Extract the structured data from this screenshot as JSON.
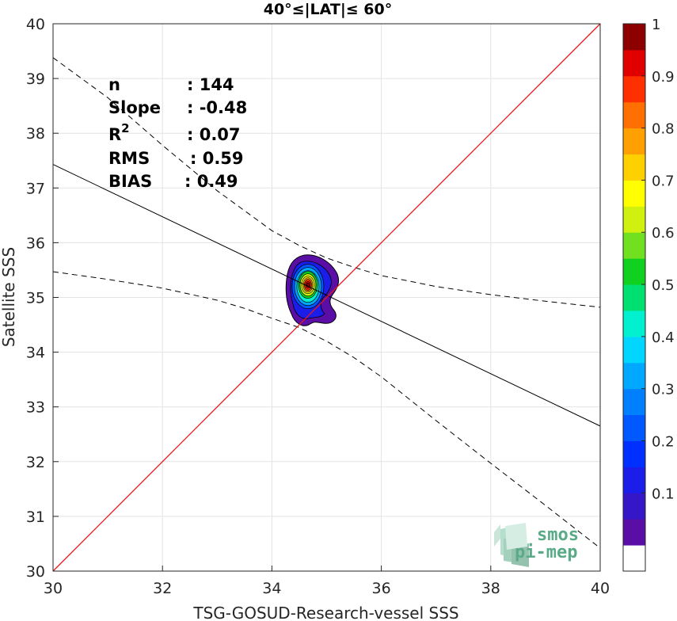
{
  "chart_data": {
    "type": "scatter",
    "title_prefix": "40°≤|LAT|≤ 60°",
    "xlabel": "TSG-GOSUD-Research-vessel SSS",
    "ylabel": "Satellite SSS",
    "xlim": [
      30,
      40
    ],
    "ylim": [
      30,
      40
    ],
    "x_ticks": [
      "30",
      "32",
      "34",
      "36",
      "38",
      "40"
    ],
    "y_ticks": [
      "30",
      "31",
      "32",
      "33",
      "34",
      "35",
      "36",
      "37",
      "38",
      "39",
      "40"
    ],
    "grid": true,
    "stats": [
      {
        "label": "n",
        "value": ": 144"
      },
      {
        "label": "Slope",
        "value": ": -0.48"
      },
      {
        "label": "R",
        "sup": "2",
        "value": ": 0.07"
      },
      {
        "label": "RMS",
        "value": ": 0.59"
      },
      {
        "label": "BIAS",
        "value": ": 0.49"
      }
    ],
    "identity_line": {
      "x": [
        30,
        40
      ],
      "y": [
        30,
        40
      ],
      "color": "#e41a1c"
    },
    "regression_line": {
      "x": [
        30,
        40
      ],
      "y": [
        37.43,
        32.65
      ],
      "color": "#000000"
    },
    "upper_bound": {
      "x": [
        30,
        31,
        32,
        33,
        34,
        34.5,
        35,
        35.5,
        36,
        37,
        38,
        39,
        40
      ],
      "y": [
        39.38,
        38.65,
        37.78,
        36.95,
        36.22,
        35.95,
        35.72,
        35.55,
        35.4,
        35.2,
        35.05,
        34.93,
        34.82
      ]
    },
    "lower_bound": {
      "x": [
        30,
        31,
        32,
        33,
        33.5,
        34,
        34.5,
        35,
        35.5,
        36,
        37,
        38,
        39,
        40
      ],
      "y": [
        35.47,
        35.33,
        35.17,
        34.95,
        34.8,
        34.62,
        34.45,
        34.2,
        33.9,
        33.55,
        32.75,
        31.97,
        31.2,
        30.42
      ]
    },
    "density_peak": {
      "x": 34.63,
      "y": 35.2
    },
    "colorbar": {
      "ticks": [
        "0.1",
        "0.2",
        "0.3",
        "0.4",
        "0.5",
        "0.6",
        "0.7",
        "0.8",
        "0.9",
        "1"
      ],
      "levels": [
        0,
        0.05,
        0.1,
        0.15,
        0.2,
        0.25,
        0.3,
        0.35,
        0.4,
        0.45,
        0.5,
        0.55,
        0.6,
        0.65,
        0.7,
        0.75,
        0.8,
        0.85,
        0.9,
        0.95,
        1
      ],
      "colors": [
        "#ffffff",
        "#5a0ea6",
        "#3617c8",
        "#1a1ee8",
        "#0030ff",
        "#0058ff",
        "#0080ff",
        "#00a8ff",
        "#00d6ff",
        "#00f0d0",
        "#00e070",
        "#10d020",
        "#70e020",
        "#d0f010",
        "#ffff00",
        "#ffd000",
        "#ffa000",
        "#ff7000",
        "#ff3000",
        "#e00000",
        "#8c0000"
      ]
    }
  },
  "logo": {
    "line1": "smos",
    "line2": "pi-mep",
    "color": "#5aaa88"
  }
}
